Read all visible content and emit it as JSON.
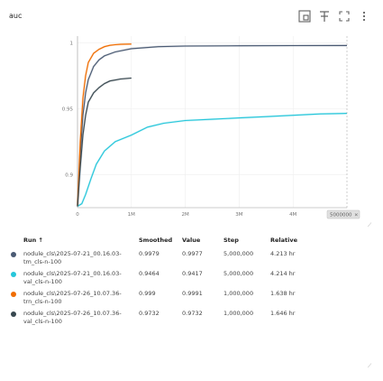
{
  "card": {
    "title": "auc"
  },
  "toolbar": {
    "icons": [
      "fit-domain-icon",
      "pin-icon",
      "fullscreen-icon",
      "more-vert-icon"
    ]
  },
  "chart_data": {
    "type": "line",
    "title": "auc",
    "xlabel": "",
    "ylabel": "",
    "xlim": [
      0,
      5000000
    ],
    "ylim": [
      0.875,
      1.005
    ],
    "x_ticks": [
      0,
      1000000,
      2000000,
      3000000,
      4000000
    ],
    "x_tick_labels": [
      "0",
      "1M",
      "2M",
      "3M",
      "4M"
    ],
    "y_ticks": [
      0.9,
      0.95,
      1
    ],
    "y_tick_labels": [
      "0.9",
      "0.95",
      "1"
    ],
    "cursor_label": "5000000",
    "cursor_close": "×",
    "grid": true,
    "series": [
      {
        "color": "#4a5a73",
        "x": [
          0,
          50000,
          100000,
          150000,
          200000,
          300000,
          400000,
          500000,
          700000,
          1000000,
          1500000,
          2000000,
          3000000,
          4000000,
          5000000
        ],
        "values": [
          0.876,
          0.915,
          0.945,
          0.962,
          0.972,
          0.982,
          0.987,
          0.99,
          0.993,
          0.9955,
          0.997,
          0.9975,
          0.9977,
          0.9978,
          0.9979
        ]
      },
      {
        "color": "#26c6da",
        "x": [
          0,
          80000,
          150000,
          250000,
          350000,
          500000,
          700000,
          1000000,
          1300000,
          1600000,
          2000000,
          2500000,
          3000000,
          3500000,
          4000000,
          4500000,
          5000000
        ],
        "values": [
          0.876,
          0.878,
          0.885,
          0.897,
          0.908,
          0.918,
          0.925,
          0.93,
          0.936,
          0.939,
          0.941,
          0.942,
          0.943,
          0.944,
          0.945,
          0.946,
          0.9464
        ]
      },
      {
        "color": "#ef6c00",
        "x": [
          0,
          50000,
          100000,
          150000,
          200000,
          300000,
          400000,
          500000,
          600000,
          700000,
          800000,
          900000,
          1000000
        ],
        "values": [
          0.876,
          0.925,
          0.958,
          0.975,
          0.985,
          0.992,
          0.995,
          0.997,
          0.998,
          0.9985,
          0.9988,
          0.9989,
          0.999
        ]
      },
      {
        "color": "#37474f",
        "x": [
          0,
          50000,
          100000,
          150000,
          200000,
          300000,
          400000,
          500000,
          600000,
          800000,
          1000000
        ],
        "values": [
          0.876,
          0.905,
          0.93,
          0.945,
          0.955,
          0.962,
          0.966,
          0.969,
          0.971,
          0.9725,
          0.9732
        ]
      }
    ]
  },
  "table": {
    "headers": {
      "run": "Run ↑",
      "smoothed": "Smoothed",
      "value": "Value",
      "step": "Step",
      "relative": "Relative"
    },
    "rows": [
      {
        "color": "#4a5a73",
        "run": "nodule_cls\\2025-07-21_00.16.03-tm_cls-n-100",
        "smoothed": "0.9979",
        "value": "0.9977",
        "step": "5,000,000",
        "relative": "4.213 hr"
      },
      {
        "color": "#26c6da",
        "run": "nodule_cls\\2025-07-21_00.16.03-val_cls-n-100",
        "smoothed": "0.9464",
        "value": "0.9417",
        "step": "5,000,000",
        "relative": "4.214 hr"
      },
      {
        "color": "#ef6c00",
        "run": "nodule_cls\\2025-07-26_10.07.36-trn_cls-n-100",
        "smoothed": "0.999",
        "value": "0.9991",
        "step": "1,000,000",
        "relative": "1.638 hr"
      },
      {
        "color": "#37474f",
        "run": "nodule_cls\\2025-07-26_10.07.36-val_cls-n-100",
        "smoothed": "0.9732",
        "value": "0.9732",
        "step": "1,000,000",
        "relative": "1.646 hr"
      }
    ]
  }
}
